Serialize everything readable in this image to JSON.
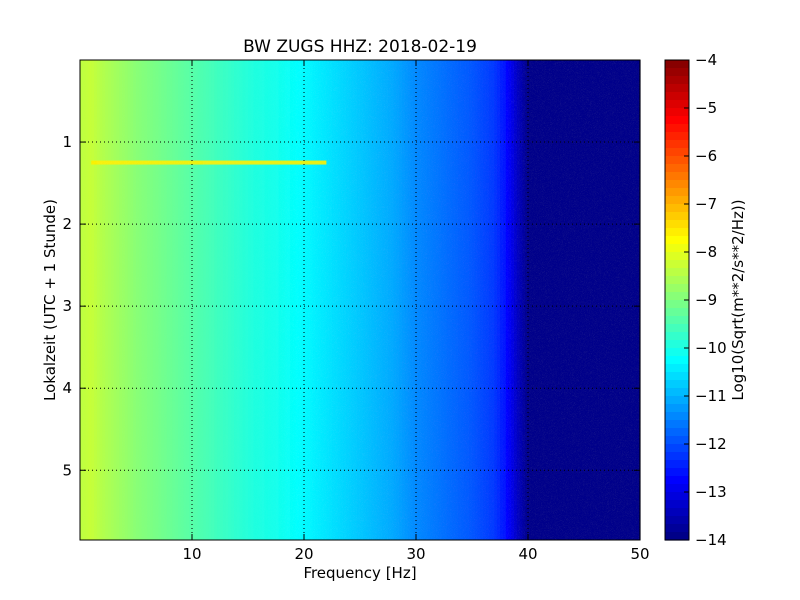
{
  "chart_data": {
    "type": "heatmap",
    "title": "BW ZUGS HHZ: 2018-02-19",
    "xlabel": "Frequency [Hz]",
    "ylabel": "Lokalzeit (UTC + 1 Stunde)",
    "xlim": [
      0,
      50
    ],
    "ylim": [
      5.85,
      0
    ],
    "x_ticks": [
      10,
      20,
      30,
      40,
      50
    ],
    "y_ticks": [
      1,
      2,
      3,
      4,
      5
    ],
    "grid": true,
    "colormap": "jet",
    "colorbar": {
      "label": "Log10(Sqrt(m**2/s**2/Hz))",
      "range": [
        -14,
        -4
      ],
      "ticks": [
        -4,
        -5,
        -6,
        -7,
        -8,
        -9,
        -10,
        -11,
        -12,
        -13,
        -14
      ]
    },
    "psd_profile": {
      "frequency_hz": [
        0,
        1,
        2,
        5,
        8,
        10,
        12,
        15,
        18,
        20,
        22,
        25,
        28,
        30,
        33,
        35,
        37,
        38,
        39,
        40,
        50
      ],
      "log10_amplitude": [
        -8.4,
        -8.3,
        -8.5,
        -8.9,
        -9.2,
        -9.4,
        -9.6,
        -9.9,
        -10.1,
        -10.3,
        -10.5,
        -10.8,
        -11.1,
        -11.4,
        -11.7,
        -11.9,
        -12.2,
        -12.6,
        -13.3,
        -13.9,
        -13.9
      ]
    },
    "annotations": [
      {
        "type": "horizontal_streak",
        "time": 1.25,
        "freq_range": [
          1,
          22
        ],
        "log10_amplitude": -7.6
      }
    ]
  }
}
